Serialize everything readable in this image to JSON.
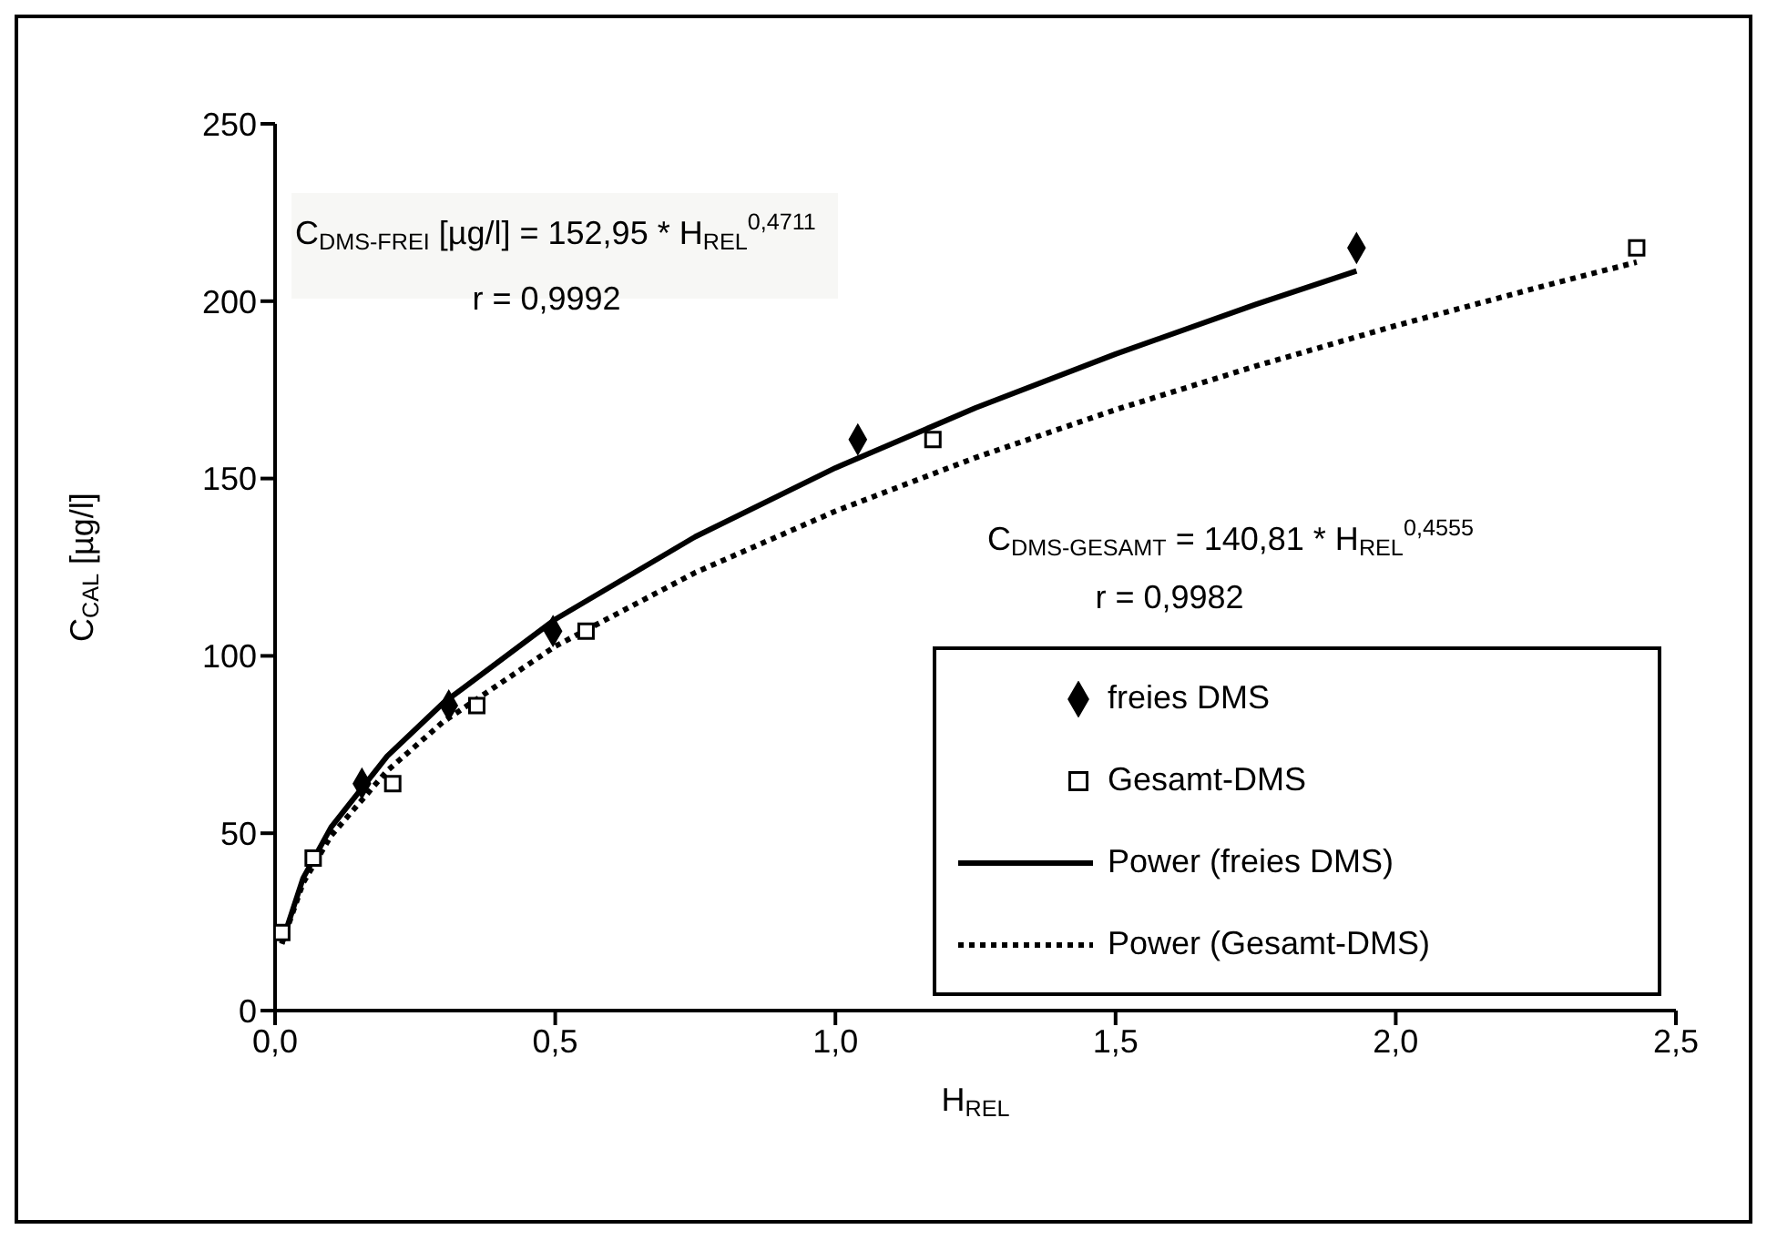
{
  "chart_data": {
    "type": "scatter",
    "xlabel": "H$_{REL}$",
    "ylabel": "C$_{CAL}$ [µg/l]",
    "xlim": [
      0,
      2.5
    ],
    "xticks": [
      {
        "value": 0,
        "label": "0,0"
      },
      {
        "value": 0.5,
        "label": "0,5"
      },
      {
        "value": 1,
        "label": "1,0"
      },
      {
        "value": 1.5,
        "label": "1,5"
      },
      {
        "value": 2,
        "label": "2,0"
      },
      {
        "value": 2.5,
        "label": "2,5"
      }
    ],
    "ylim": [
      0,
      250
    ],
    "yticks": [
      0,
      50,
      100,
      150,
      200,
      250
    ],
    "grid": false,
    "legend": "bottom right",
    "annotations": [
      "C$_{DMS-FREI}$ [µg/l] = 152,95 * H$_{REL}$$^{0,4711}$",
      "r = 0,9992",
      "C$_{DMS-GESAMT}$ = 140,81 * H$_{REL}$$^{0,4555}$",
      "r = 0,9982"
    ],
    "series": [
      {
        "name": "freies DMS",
        "type": "scatter",
        "marker": "diamond",
        "color": "#000000",
        "x": [
          0.155,
          0.31,
          0.496,
          1.04,
          1.93
        ],
        "values": [
          64,
          86,
          107,
          161,
          215
        ]
      },
      {
        "name": "Gesamt-DMS",
        "type": "scatter",
        "marker": "square",
        "color": "#000000",
        "x": [
          0.012,
          0.068,
          0.21,
          0.36,
          0.555,
          1.174,
          2.43
        ],
        "values": [
          22,
          43,
          64,
          86,
          107,
          161,
          215
        ]
      },
      {
        "name": "Power (freies DMS)",
        "type": "line",
        "marker": "none",
        "line_style": "solid",
        "color": "#000000",
        "x": [
          0.012,
          0.05,
          0.1,
          0.2,
          0.3,
          0.5,
          0.75,
          1,
          1.25,
          1.5,
          1.75,
          1.93
        ],
        "values": [
          19.0,
          37.3,
          51.7,
          71.7,
          86.7,
          110.3,
          133.6,
          153.0,
          169.9,
          185.1,
          199.1,
          208.5
        ]
      },
      {
        "name": "Power (Gesamt-DMS)",
        "type": "line",
        "marker": "none",
        "line_style": "dotted",
        "color": "#000000",
        "x": [
          0.012,
          0.05,
          0.1,
          0.2,
          0.3,
          0.5,
          0.75,
          1,
          1.25,
          1.5,
          1.75,
          2,
          2.25,
          2.43
        ],
        "values": [
          18.8,
          36.0,
          49.3,
          67.6,
          81.4,
          102.7,
          123.5,
          140.8,
          155.9,
          169.4,
          181.7,
          193.1,
          203.7,
          211.0
        ]
      }
    ]
  }
}
